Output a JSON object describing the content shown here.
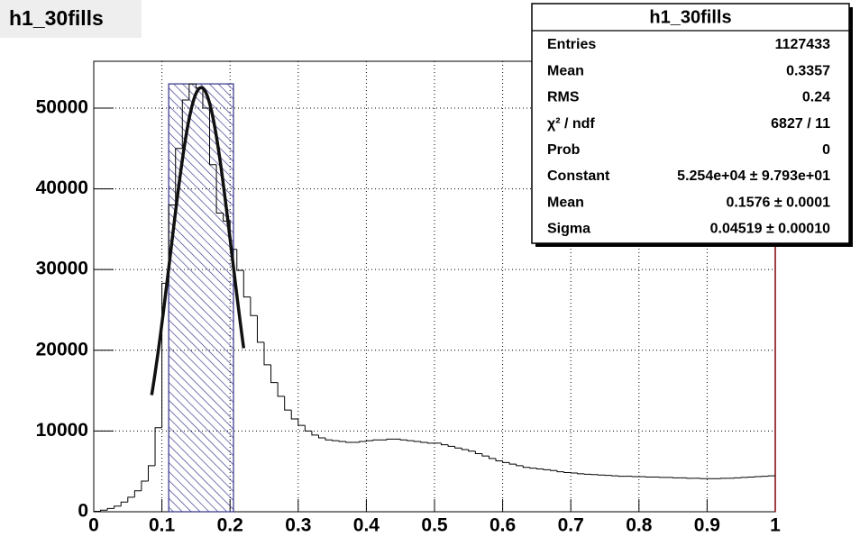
{
  "chart_data": {
    "type": "histogram",
    "title": "h1_30fills",
    "bins": [
      0,
      0.01,
      0.02,
      0.03,
      0.04,
      0.05,
      0.06,
      0.07,
      0.08,
      0.09,
      0.1,
      0.11,
      0.12,
      0.13,
      0.14,
      0.15,
      0.16,
      0.17,
      0.18,
      0.19,
      0.2,
      0.21,
      0.22,
      0.23,
      0.24,
      0.25,
      0.26,
      0.27,
      0.28,
      0.29,
      0.3,
      0.31,
      0.32,
      0.33,
      0.34,
      0.35,
      0.36,
      0.37,
      0.38,
      0.39,
      0.4,
      0.41,
      0.42,
      0.43,
      0.44,
      0.45,
      0.46,
      0.47,
      0.48,
      0.49,
      0.5,
      0.51,
      0.52,
      0.53,
      0.54,
      0.55,
      0.56,
      0.57,
      0.58,
      0.59,
      0.6,
      0.61,
      0.62,
      0.63,
      0.64,
      0.65,
      0.66,
      0.67,
      0.68,
      0.69,
      0.7,
      0.71,
      0.72,
      0.73,
      0.74,
      0.75,
      0.76,
      0.77,
      0.78,
      0.79,
      0.8,
      0.81,
      0.82,
      0.83,
      0.84,
      0.85,
      0.86,
      0.87,
      0.88,
      0.89,
      0.9,
      0.91,
      0.92,
      0.93,
      0.94,
      0.95,
      0.96,
      0.97,
      0.98,
      0.99,
      1
    ],
    "values": [
      50,
      200,
      400,
      700,
      1200,
      1800,
      2600,
      3800,
      5700,
      10400,
      28300,
      38000,
      45000,
      51000,
      53000,
      52500,
      50000,
      43000,
      37000,
      36000,
      32500,
      29900,
      26600,
      24300,
      21000,
      18200,
      16000,
      14300,
      12600,
      11500,
      10700,
      10000,
      9500,
      9150,
      8900,
      8800,
      8700,
      8600,
      8600,
      8700,
      8800,
      8900,
      8900,
      9000,
      9000,
      8900,
      8800,
      8700,
      8600,
      8500,
      8500,
      8300,
      8100,
      7900,
      7700,
      7500,
      7200,
      6900,
      6600,
      6300,
      6100,
      5900,
      5700,
      5500,
      5400,
      5300,
      5200,
      5100,
      4950,
      4850,
      4800,
      4700,
      4650,
      4600,
      4550,
      4500,
      4450,
      4400,
      4400,
      4350,
      4350,
      4300,
      4300,
      4250,
      4250,
      4200,
      4200,
      4150,
      4150,
      4100,
      4100,
      4100,
      4150,
      4150,
      4200,
      4250,
      4300,
      4350,
      4400,
      4450
    ],
    "color": "#000000",
    "band": {
      "x0": 0.11,
      "x1": 0.205,
      "y": 53000,
      "color": "#30308a"
    },
    "fit": {
      "constant": 52540,
      "mean": 0.1576,
      "sigma": 0.04519,
      "range": [
        0.085,
        0.22
      ],
      "color": "#111111"
    },
    "xlim": [
      0,
      1
    ],
    "xticks": [
      0,
      0.1,
      0.2,
      0.3,
      0.4,
      0.5,
      0.6,
      0.7,
      0.8,
      0.9,
      1
    ],
    "ylim": [
      0,
      55800
    ],
    "yticks": [
      0,
      10000,
      20000,
      30000,
      40000,
      50000
    ],
    "grid": true,
    "stats": {
      "title": "h1_30fills",
      "rows": [
        {
          "label": "Entries",
          "value": "1127433"
        },
        {
          "label": "Mean",
          "value": "0.3357"
        },
        {
          "label": "RMS",
          "value": "0.24"
        },
        {
          "label": "χ² / ndf",
          "value": "6827 / 11"
        },
        {
          "label": "Prob",
          "value": "0"
        },
        {
          "label": "Constant",
          "value": "5.254e+04 ± 9.793e+01"
        },
        {
          "label": "Mean",
          "value": "0.1576 ± 0.0001"
        },
        {
          "label": "Sigma",
          "value": "0.04519 ± 0.00010"
        }
      ]
    }
  }
}
